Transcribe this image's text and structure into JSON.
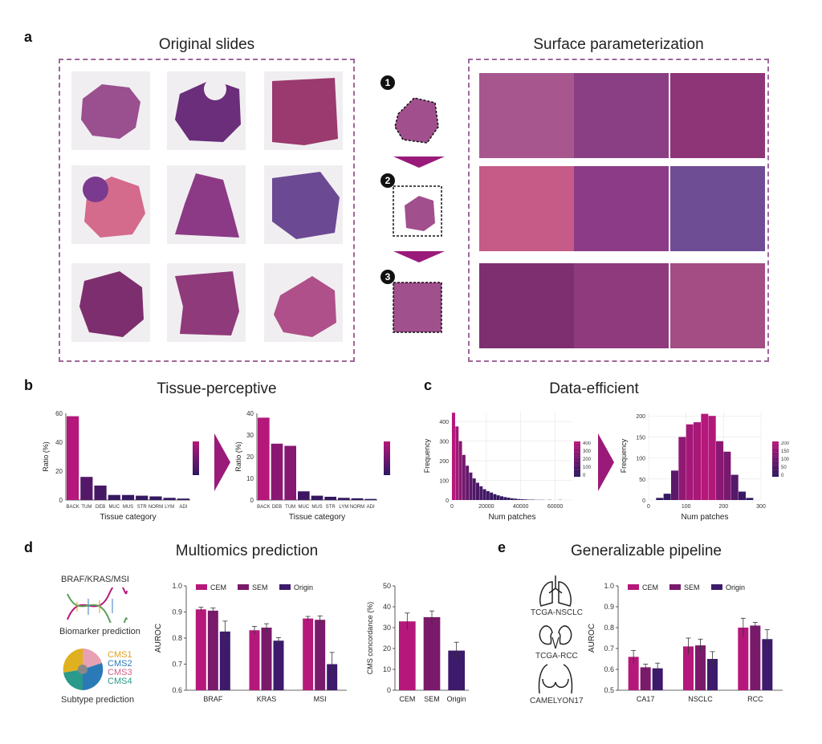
{
  "panels": {
    "a": {
      "letter": "a",
      "left_title": "Original slides",
      "right_title": "Surface parameterization",
      "steps": [
        "1",
        "2",
        "3"
      ]
    },
    "b": {
      "letter": "b",
      "title": "Tissue-perceptive"
    },
    "c": {
      "letter": "c",
      "title": "Data-efficient"
    },
    "d": {
      "letter": "d",
      "title": "Multiomics prediction",
      "biomarker_label": "BRAF/KRAS/MSI",
      "biomarker_caption": "Biomarker prediction",
      "subtype_caption": "Subtype prediction",
      "cms_labels": [
        "CMS1",
        "CMS2",
        "CMS3",
        "CMS4"
      ]
    },
    "e": {
      "letter": "e",
      "title": "Generalizable pipeline",
      "organ_labels": [
        "TCGA-NSCLC",
        "TCGA-RCC",
        "CAMELYON17"
      ]
    }
  },
  "colors": {
    "cem": "#b5187a",
    "sem": "#7a1a6b",
    "origin": "#3d1a6b",
    "dash": "#a0679a"
  },
  "chart_data": [
    {
      "id": "b1",
      "type": "bar",
      "categories": [
        "BACK",
        "TUM",
        "DEB",
        "MUC",
        "MUS",
        "STR",
        "NORM",
        "LYM",
        "ADI"
      ],
      "values": [
        58,
        16,
        10,
        3.5,
        3.5,
        3,
        2.5,
        1.5,
        1
      ],
      "ylabel": "Ratio (%)",
      "xlabel": "Tissue category",
      "ylim": [
        0,
        60
      ],
      "yticks": [
        0,
        20,
        40,
        60
      ]
    },
    {
      "id": "b2",
      "type": "bar",
      "categories": [
        "BACK",
        "DEB",
        "TUM",
        "MUC",
        "MUS",
        "STR",
        "LYM",
        "NORM",
        "ADI"
      ],
      "values": [
        38,
        26,
        25,
        4,
        2,
        1.5,
        1,
        0.8,
        0.5
      ],
      "ylabel": "Ratio (%)",
      "xlabel": "Tissue category",
      "ylim": [
        0,
        40
      ],
      "yticks": [
        0,
        10,
        20,
        30,
        40
      ]
    },
    {
      "id": "c1",
      "type": "bar",
      "xlabel": "Num patches",
      "ylabel": "Frequency",
      "xlim": [
        0,
        70000
      ],
      "xticks": [
        0,
        20000,
        40000,
        60000
      ],
      "ylim": [
        0,
        450
      ],
      "yticks": [
        0,
        100,
        200,
        300,
        400
      ],
      "bins_start": 0,
      "bin_width": 2000,
      "values": [
        445,
        375,
        300,
        230,
        175,
        140,
        110,
        88,
        70,
        55,
        45,
        38,
        30,
        24,
        19,
        15,
        12,
        9,
        7,
        5,
        4,
        3,
        2,
        2,
        1,
        1,
        1,
        0,
        1,
        0,
        0,
        1
      ],
      "colorbar_ticks": [
        "400",
        "300",
        "200",
        "100",
        "0"
      ]
    },
    {
      "id": "c2",
      "type": "bar",
      "xlabel": "Num patches",
      "ylabel": "Frequency",
      "xlim": [
        0,
        300
      ],
      "xticks": [
        0,
        100,
        200,
        300
      ],
      "ylim": [
        0,
        210
      ],
      "yticks": [
        0,
        50,
        100,
        150,
        200
      ],
      "bins_start": 20,
      "bin_width": 20,
      "values": [
        5,
        15,
        70,
        150,
        180,
        185,
        205,
        200,
        140,
        115,
        60,
        20,
        5
      ],
      "colorbar_ticks": [
        "200",
        "150",
        "100",
        "50",
        "0"
      ]
    },
    {
      "id": "d1",
      "type": "bar",
      "categories": [
        "BRAF",
        "KRAS",
        "MSI"
      ],
      "ylabel": "AUROC",
      "ylim": [
        0.6,
        1.0
      ],
      "yticks": [
        "0.6",
        "0.7",
        "0.8",
        "0.9",
        "1.0"
      ],
      "series": [
        {
          "name": "CEM",
          "values": [
            0.91,
            0.83,
            0.875
          ],
          "err": [
            0.008,
            0.015,
            0.008
          ]
        },
        {
          "name": "SEM",
          "values": [
            0.905,
            0.84,
            0.87
          ],
          "err": [
            0.01,
            0.015,
            0.015
          ]
        },
        {
          "name": "Origin",
          "values": [
            0.825,
            0.79,
            0.7
          ],
          "err": [
            0.04,
            0.012,
            0.045
          ]
        }
      ]
    },
    {
      "id": "d2",
      "type": "bar",
      "categories": [
        "CEM",
        "SEM",
        "Origin"
      ],
      "ylabel": "CMS concordance (%)",
      "ylim": [
        0,
        50
      ],
      "yticks": [
        "0",
        "10",
        "20",
        "30",
        "40",
        "50"
      ],
      "values": [
        33,
        35,
        19
      ],
      "err": [
        4,
        3,
        4
      ]
    },
    {
      "id": "e1",
      "type": "bar",
      "categories": [
        "CA17",
        "NSCLC",
        "RCC"
      ],
      "ylabel": "AUROC",
      "ylim": [
        0.5,
        1.0
      ],
      "yticks": [
        "0.5",
        "0.6",
        "0.7",
        "0.8",
        "0.9",
        "1.0"
      ],
      "series": [
        {
          "name": "CEM",
          "values": [
            0.66,
            0.71,
            0.8
          ],
          "err": [
            0.03,
            0.04,
            0.045
          ]
        },
        {
          "name": "SEM",
          "values": [
            0.61,
            0.715,
            0.81
          ],
          "err": [
            0.015,
            0.03,
            0.015
          ]
        },
        {
          "name": "Origin",
          "values": [
            0.605,
            0.65,
            0.745
          ],
          "err": [
            0.025,
            0.035,
            0.045
          ]
        }
      ]
    }
  ]
}
